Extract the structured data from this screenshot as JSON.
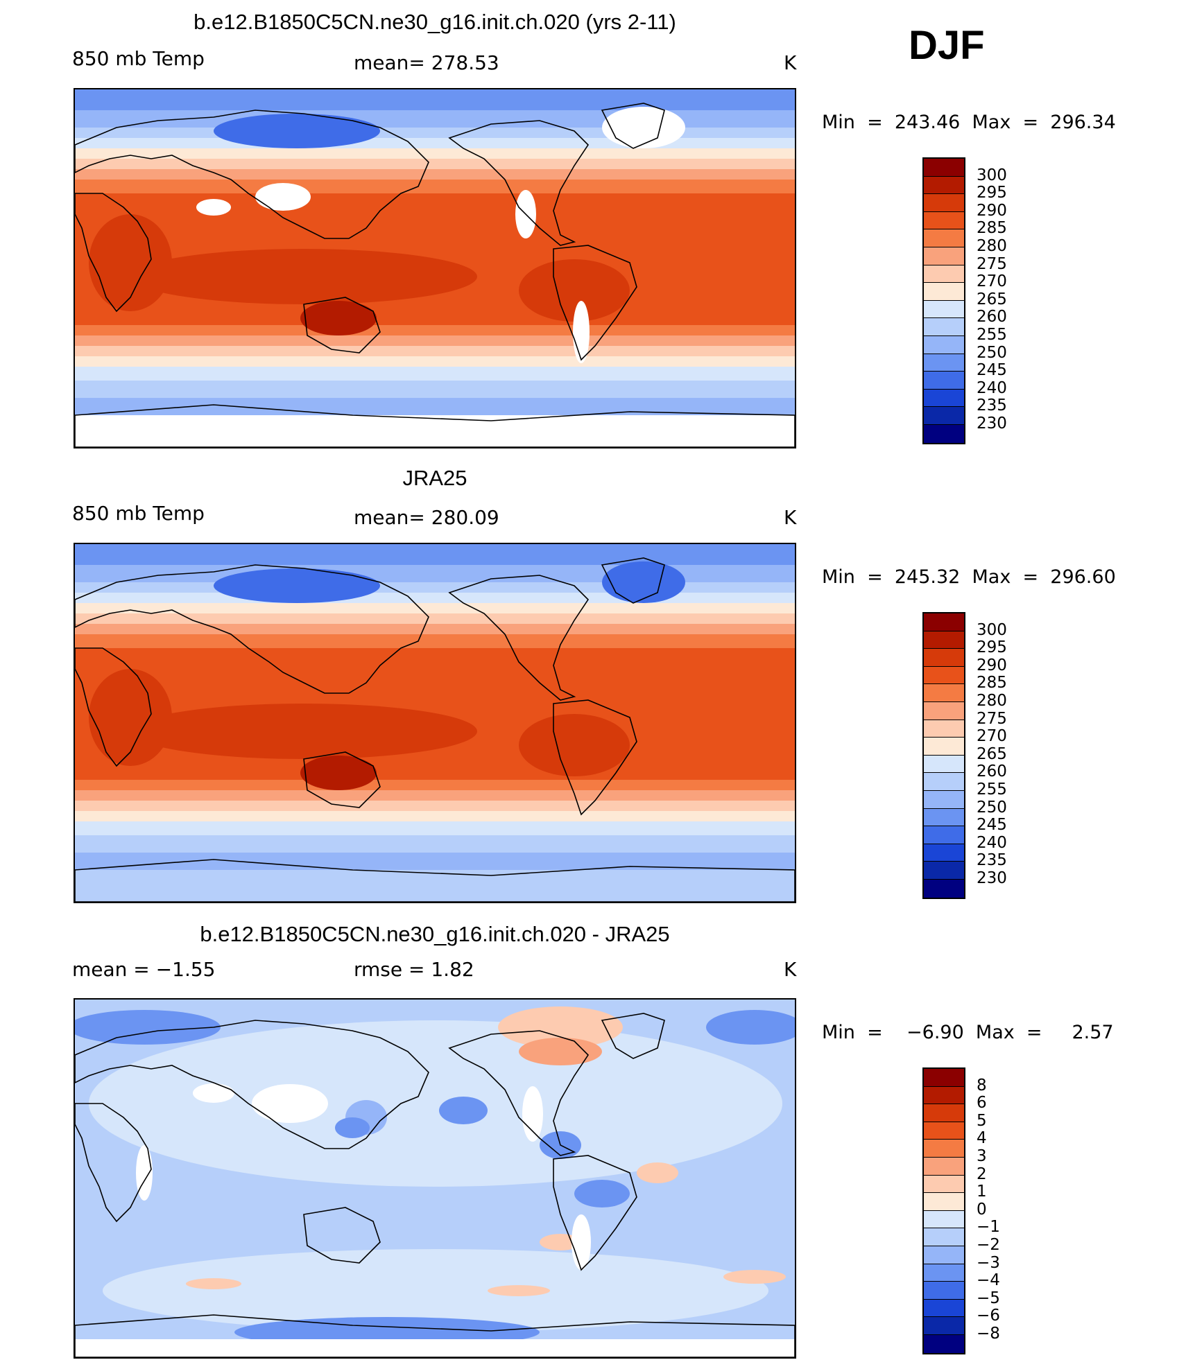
{
  "season": "DJF",
  "panels": [
    {
      "title": "b.e12.B1850C5CN.ne30_g16.init.ch.020 (yrs 2-11)",
      "left": "850 mb Temp",
      "center": "mean=  278.53",
      "units": "K",
      "minmax": "Min  =  243.46  Max  =  296.34",
      "colorbar": {
        "labels": [
          "300",
          "295",
          "290",
          "285",
          "280",
          "275",
          "270",
          "265",
          "260",
          "255",
          "250",
          "245",
          "240",
          "235",
          "230"
        ],
        "colors": [
          "#8b0000",
          "#b31b00",
          "#d63a0a",
          "#e8521a",
          "#f47b43",
          "#f9a27c",
          "#fdcbb0",
          "#fde9d6",
          "#d6e6fb",
          "#b6cffa",
          "#95b5f8",
          "#6b94f2",
          "#3f6ce8",
          "#1a45d6",
          "#0a28a8",
          "#000080"
        ]
      },
      "kind": "model"
    },
    {
      "title": "JRA25",
      "left": "850 mb Temp",
      "center": "mean=  280.09",
      "units": "K",
      "minmax": "Min  =  245.32  Max  =  296.60",
      "colorbar": {
        "labels": [
          "300",
          "295",
          "290",
          "285",
          "280",
          "275",
          "270",
          "265",
          "260",
          "255",
          "250",
          "245",
          "240",
          "235",
          "230"
        ],
        "colors": [
          "#8b0000",
          "#b31b00",
          "#d63a0a",
          "#e8521a",
          "#f47b43",
          "#f9a27c",
          "#fdcbb0",
          "#fde9d6",
          "#d6e6fb",
          "#b6cffa",
          "#95b5f8",
          "#6b94f2",
          "#3f6ce8",
          "#1a45d6",
          "#0a28a8",
          "#000080"
        ]
      },
      "kind": "obs"
    },
    {
      "title": "b.e12.B1850C5CN.ne30_g16.init.ch.020 - JRA25",
      "left": "mean =    −1.55",
      "center": "rmse =     1.82",
      "units": "K",
      "minmax": "Min  =    −6.90  Max  =     2.57",
      "colorbar": {
        "labels": [
          "8",
          "6",
          "5",
          "4",
          "3",
          "2",
          "1",
          "0",
          "−1",
          "−2",
          "−3",
          "−4",
          "−5",
          "−6",
          "−8"
        ],
        "colors": [
          "#8b0000",
          "#b31b00",
          "#d63a0a",
          "#e8521a",
          "#f47b43",
          "#f9a27c",
          "#fdcbb0",
          "#fde9d6",
          "#d6e6fb",
          "#b6cffa",
          "#95b5f8",
          "#6b94f2",
          "#3f6ce8",
          "#1a45d6",
          "#0a28a8",
          "#000080"
        ]
      },
      "kind": "diff"
    }
  ],
  "chart_data": {
    "type": "heatmap",
    "field": "850 mb Temp",
    "units": "K",
    "maps": [
      {
        "name": "b.e12.B1850C5CN.ne30_g16.init.ch.020 (yrs 2-11)",
        "mean": 278.53,
        "min": 243.46,
        "max": 296.34,
        "levels": [
          230,
          235,
          240,
          245,
          250,
          255,
          260,
          265,
          270,
          275,
          280,
          285,
          290,
          295,
          300
        ]
      },
      {
        "name": "JRA25",
        "mean": 280.09,
        "min": 245.32,
        "max": 296.6,
        "levels": [
          230,
          235,
          240,
          245,
          250,
          255,
          260,
          265,
          270,
          275,
          280,
          285,
          290,
          295,
          300
        ]
      },
      {
        "name": "b.e12.B1850C5CN.ne30_g16.init.ch.020 - JRA25",
        "mean": -1.55,
        "rmse": 1.82,
        "min": -6.9,
        "max": 2.57,
        "levels": [
          -8,
          -6,
          -5,
          -4,
          -3,
          -2,
          -1,
          0,
          1,
          2,
          3,
          4,
          5,
          6,
          8
        ]
      }
    ]
  }
}
